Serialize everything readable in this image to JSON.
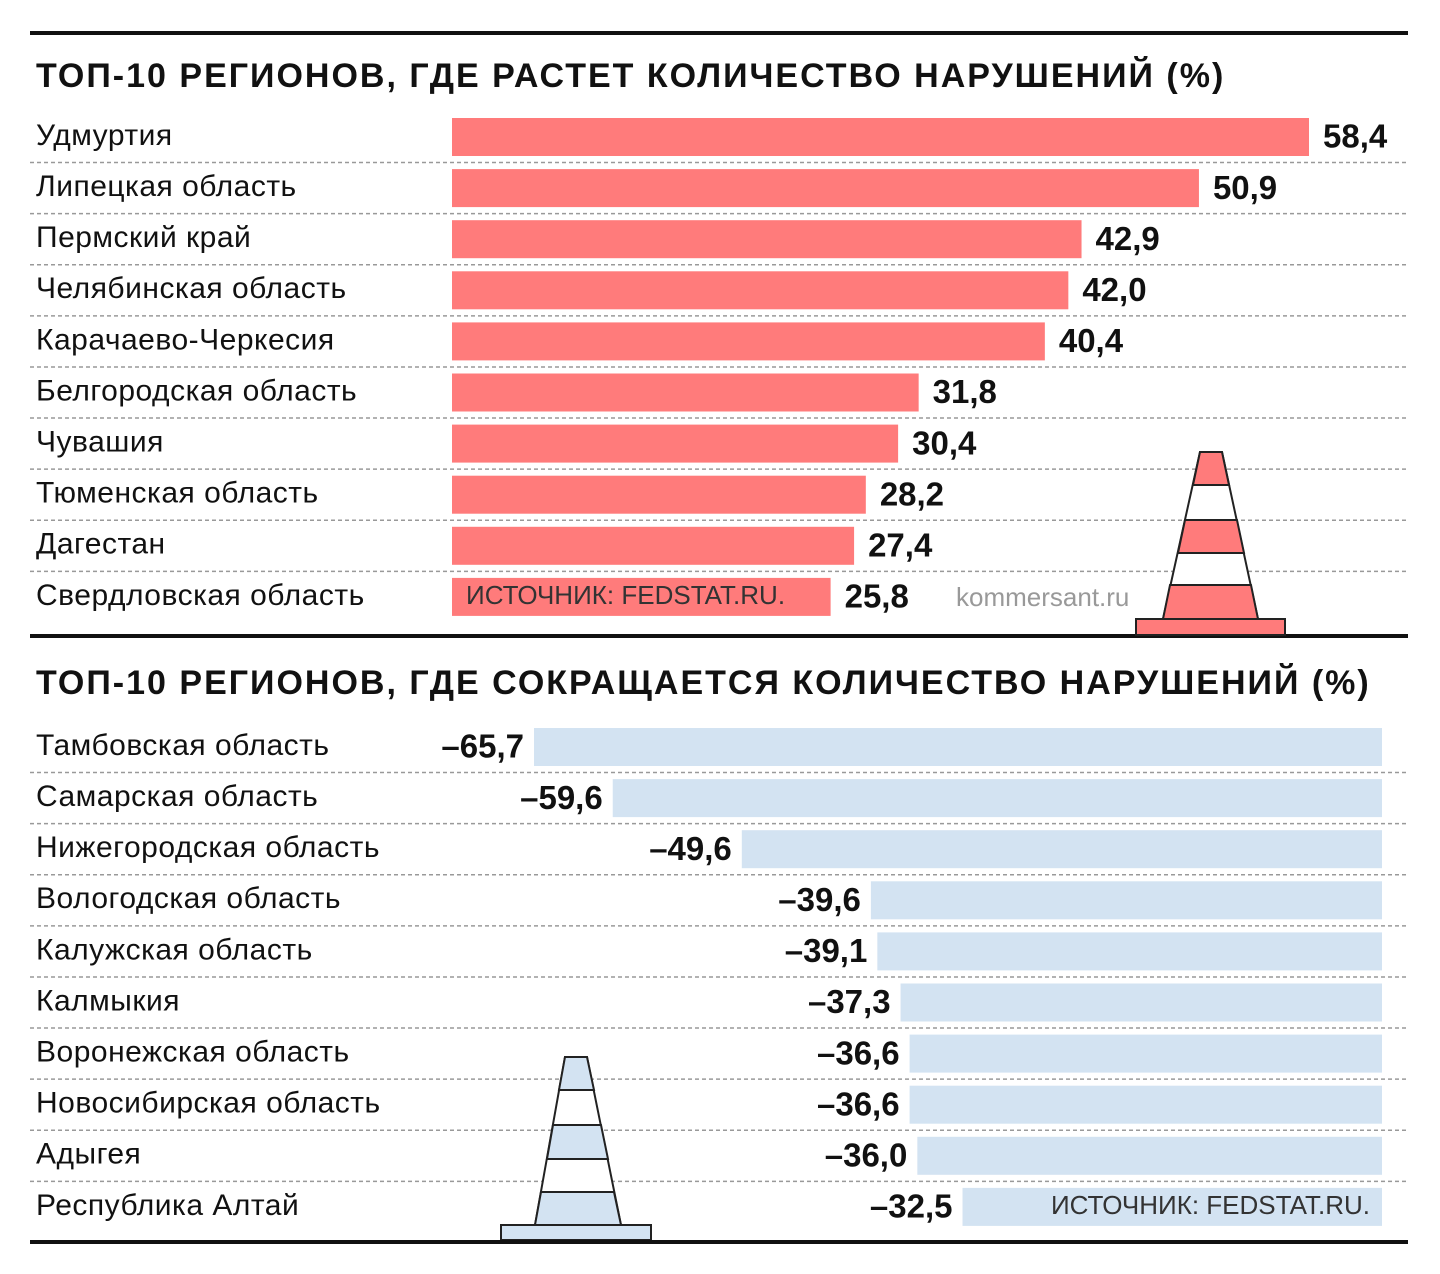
{
  "chart_data": [
    {
      "type": "bar",
      "orientation": "horizontal",
      "title": "ТОП-10 РЕГИОНОВ, ГДЕ РАСТЕТ КОЛИЧЕСТВО НАРУШЕНИЙ (%)",
      "categories": [
        "Удмуртия",
        "Липецкая область",
        "Пермский край",
        "Челябинская область",
        "Карачаево-Черкесия",
        "Белгородская область",
        "Чувашия",
        "Тюменская область",
        "Дагестан",
        "Свердловская область"
      ],
      "values": [
        58.4,
        50.9,
        42.9,
        42.0,
        40.4,
        31.8,
        30.4,
        28.2,
        27.4,
        25.8
      ],
      "value_labels": [
        "58,4",
        "50,9",
        "42,9",
        "42,0",
        "40,4",
        "31,8",
        "30,4",
        "28,2",
        "27,4",
        "25,8"
      ],
      "color": "#ff7b7b",
      "xlim": [
        0,
        58.4
      ],
      "source": "ИСТОЧНИК: FEDSTAT.RU.",
      "credit": "kommersant.ru"
    },
    {
      "type": "bar",
      "orientation": "horizontal",
      "title": "ТОП-10 РЕГИОНОВ, ГДЕ СОКРАЩАЕТСЯ КОЛИЧЕСТВО НАРУШЕНИЙ (%)",
      "categories": [
        "Тамбовская область",
        "Самарская область",
        "Нижегородская область",
        "Вологодская область",
        "Калужская область",
        "Калмыкия",
        "Воронежская область",
        "Новосибирская область",
        "Адыгея",
        "Республика Алтай"
      ],
      "values": [
        -65.7,
        -59.6,
        -49.6,
        -39.6,
        -39.1,
        -37.3,
        -36.6,
        -36.6,
        -36.0,
        -32.5
      ],
      "value_labels": [
        "–65,7",
        "–59,6",
        "–49,6",
        "–39,6",
        "–39,1",
        "–37,3",
        "–36,6",
        "–36,6",
        "–36,0",
        "–32,5"
      ],
      "color": "#d3e3f2",
      "xlim": [
        -65.7,
        0
      ],
      "source": "ИСТОЧНИК: FEDSTAT.RU."
    }
  ]
}
